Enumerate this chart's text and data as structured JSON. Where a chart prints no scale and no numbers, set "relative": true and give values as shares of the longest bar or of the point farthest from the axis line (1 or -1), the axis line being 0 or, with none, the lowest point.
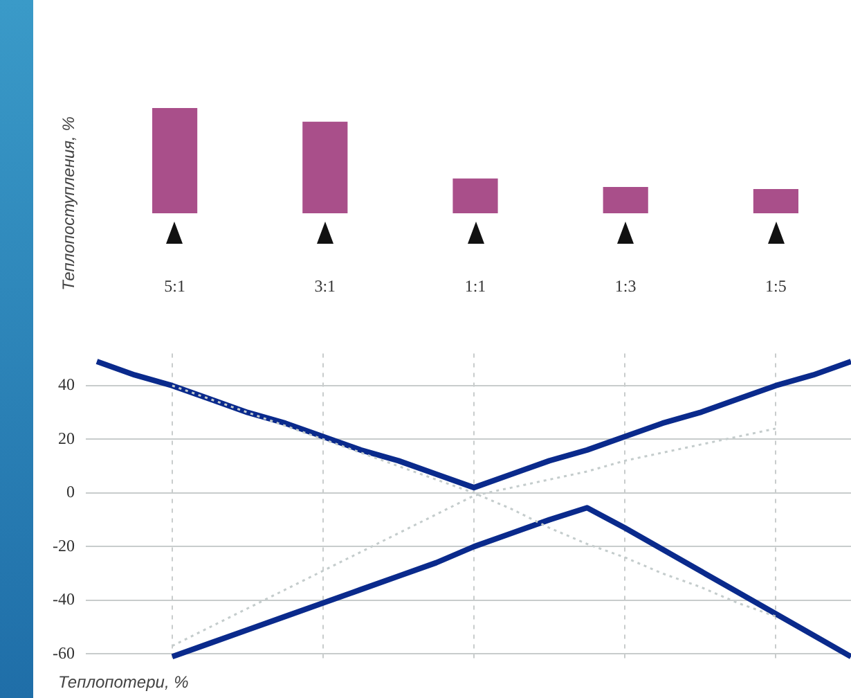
{
  "chart_data": [
    {
      "type": "bar",
      "ylabel": "Теплопоступления, %",
      "categories": [
        "5:1",
        "3:1",
        "1:1",
        "1:3",
        "1:5"
      ],
      "values": [
        1,
        0.87,
        0.33,
        0.25,
        0.23
      ],
      "relative": true,
      "color": "#a94f8a",
      "legend": false
    },
    {
      "type": "line",
      "ylabel": "Теплопотери, %",
      "categories": [
        null,
        null,
        null,
        null,
        null,
        null,
        null,
        null,
        null,
        null,
        null,
        null,
        null,
        null,
        null,
        null,
        null,
        null,
        null,
        null,
        null
      ],
      "ylim": [
        -63,
        52
      ],
      "yticks": [
        -60,
        -40,
        -20,
        0,
        20,
        40
      ],
      "tick_labels": "y",
      "grid": true,
      "legend": false,
      "marker": "none",
      "series": [
        {
          "values": [
            null,
            null,
            -57,
            -50,
            -43,
            -36,
            -29,
            -22,
            -15,
            -8,
            -1,
            2,
            5,
            8,
            12,
            15,
            18,
            21,
            24,
            null,
            null
          ],
          "color": "#c4cccc",
          "line_style": "dotted"
        },
        {
          "values": [
            null,
            null,
            40,
            35,
            30,
            25,
            20,
            15,
            10,
            5,
            0,
            -6,
            -13,
            -19,
            -24,
            -30,
            -35,
            -41,
            -46,
            null,
            null
          ],
          "color": "#c4cccc",
          "line_style": "dotted"
        },
        {
          "values": [
            49,
            44,
            40,
            35,
            30,
            26,
            21,
            16,
            12,
            7,
            2,
            7,
            12,
            16,
            21,
            26,
            30,
            35,
            40,
            44,
            49
          ],
          "color": "#0a2a8c",
          "line_style": "solid"
        },
        {
          "values": [
            null,
            null,
            -61,
            -56,
            -51,
            -46,
            -41,
            -36,
            -31,
            -26,
            -20,
            -15,
            -10,
            -5.5,
            -13,
            -21,
            -29,
            -37,
            -45,
            -53,
            -61
          ],
          "color": "#0a2a8c",
          "line_style": "solid"
        }
      ]
    }
  ]
}
